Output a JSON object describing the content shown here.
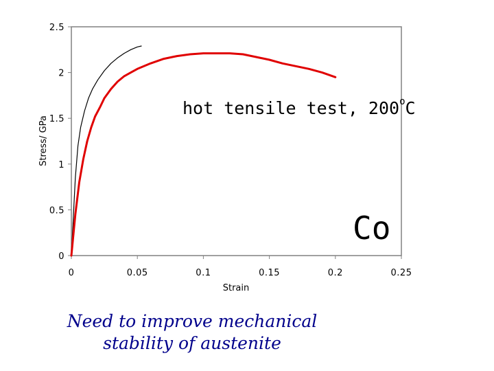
{
  "chart_data": {
    "type": "line",
    "xlabel": "Strain",
    "ylabel": "Stress/ GPa",
    "xlim": [
      0,
      0.25
    ],
    "ylim": [
      0,
      2.5
    ],
    "x_ticks": [
      "0",
      "0.05",
      "0.1",
      "0.15",
      "0.2",
      "0.25"
    ],
    "y_ticks": [
      "0",
      "0.5",
      "1",
      "1.5",
      "2",
      "2.5"
    ],
    "grid": false,
    "legend": "none",
    "annotation": "hot tensile test, 200",
    "annotation_degree": "o",
    "annotation_unit": "C",
    "element_label": "Co",
    "series": [
      {
        "color": "#000000",
        "x": [
          0,
          0.003,
          0.005,
          0.007,
          0.01,
          0.013,
          0.016,
          0.02,
          0.025,
          0.03,
          0.035,
          0.04,
          0.045,
          0.05,
          0.053
        ],
        "y": [
          0,
          0.85,
          1.2,
          1.4,
          1.58,
          1.72,
          1.82,
          1.92,
          2.02,
          2.1,
          2.16,
          2.21,
          2.25,
          2.28,
          2.29
        ]
      },
      {
        "color": "#e00000",
        "x": [
          0,
          0.003,
          0.006,
          0.009,
          0.012,
          0.015,
          0.018,
          0.022,
          0.025,
          0.03,
          0.035,
          0.04,
          0.045,
          0.05,
          0.06,
          0.07,
          0.08,
          0.09,
          0.1,
          0.11,
          0.12,
          0.13,
          0.14,
          0.15,
          0.16,
          0.17,
          0.18,
          0.19,
          0.2
        ],
        "y": [
          0,
          0.45,
          0.8,
          1.05,
          1.25,
          1.4,
          1.52,
          1.63,
          1.72,
          1.82,
          1.9,
          1.96,
          2.0,
          2.04,
          2.1,
          2.15,
          2.18,
          2.2,
          2.21,
          2.21,
          2.21,
          2.2,
          2.17,
          2.14,
          2.1,
          2.07,
          2.04,
          2.0,
          1.95
        ]
      }
    ]
  },
  "caption": {
    "line1": "Need to improve mechanical",
    "line2": "stability of  austenite"
  }
}
